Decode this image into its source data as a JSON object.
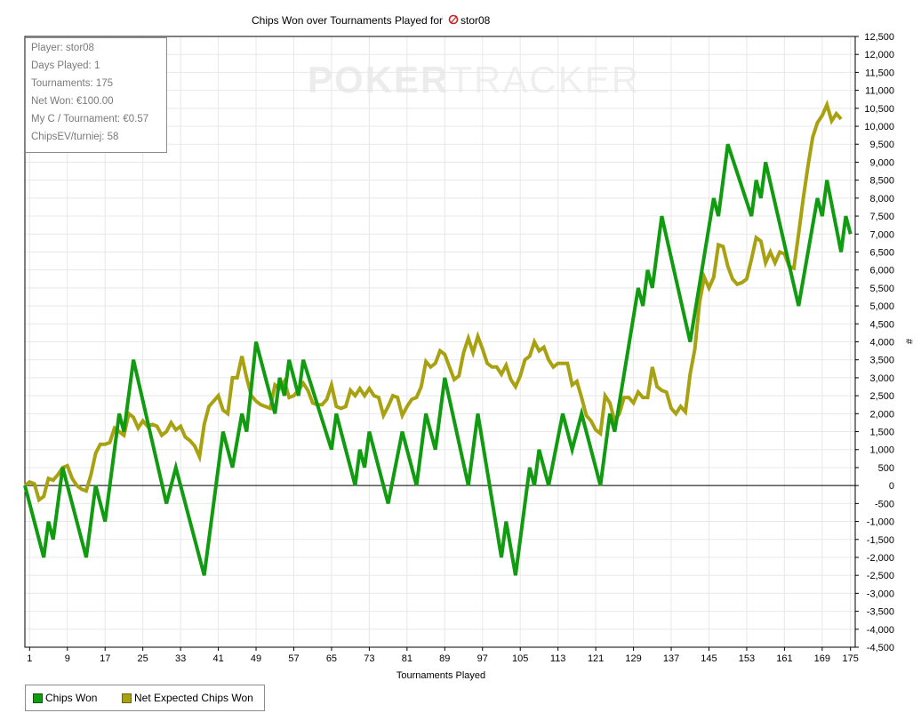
{
  "chart_data": {
    "type": "line",
    "title": "Chips Won over Tournaments Played for",
    "player_name": "stor08",
    "xlabel": "Tournaments Played",
    "ylabel": "#",
    "x_ticks": [
      1,
      9,
      17,
      25,
      33,
      41,
      49,
      57,
      65,
      73,
      81,
      89,
      97,
      105,
      113,
      121,
      129,
      137,
      145,
      153,
      161,
      169,
      175
    ],
    "xlim": [
      0,
      176
    ],
    "ylim": [
      -4500,
      12500
    ],
    "y_tick_step": 500,
    "grid": true,
    "legend_placement": "bottom-left",
    "series": [
      {
        "name": "Chips Won",
        "color": "#119b11",
        "points": [
          [
            0,
            0
          ],
          [
            4,
            -2000
          ],
          [
            5,
            -1000
          ],
          [
            6,
            -1500
          ],
          [
            8,
            500
          ],
          [
            13,
            -2000
          ],
          [
            15,
            0
          ],
          [
            17,
            -1000
          ],
          [
            20,
            2000
          ],
          [
            21,
            1500
          ],
          [
            23,
            3500
          ],
          [
            30,
            -500
          ],
          [
            32,
            500
          ],
          [
            38,
            -2500
          ],
          [
            42,
            1500
          ],
          [
            44,
            500
          ],
          [
            46,
            2000
          ],
          [
            47,
            1500
          ],
          [
            49,
            4000
          ],
          [
            53,
            2000
          ],
          [
            54,
            3000
          ],
          [
            55,
            2500
          ],
          [
            56,
            3500
          ],
          [
            58,
            2500
          ],
          [
            59,
            3500
          ],
          [
            65,
            1000
          ],
          [
            66,
            2000
          ],
          [
            70,
            0
          ],
          [
            71,
            1000
          ],
          [
            72,
            500
          ],
          [
            73,
            1500
          ],
          [
            77,
            -500
          ],
          [
            80,
            1500
          ],
          [
            83,
            0
          ],
          [
            85,
            2000
          ],
          [
            87,
            1000
          ],
          [
            89,
            3000
          ],
          [
            94,
            0
          ],
          [
            96,
            2000
          ],
          [
            101,
            -2000
          ],
          [
            102,
            -1000
          ],
          [
            104,
            -2500
          ],
          [
            107,
            500
          ],
          [
            108,
            0
          ],
          [
            109,
            1000
          ],
          [
            111,
            0
          ],
          [
            114,
            2000
          ],
          [
            116,
            1000
          ],
          [
            118,
            2000
          ],
          [
            122,
            0
          ],
          [
            124,
            2000
          ],
          [
            125,
            1500
          ],
          [
            130,
            5500
          ],
          [
            131,
            5000
          ],
          [
            132,
            6000
          ],
          [
            133,
            5500
          ],
          [
            135,
            7500
          ],
          [
            141,
            4000
          ],
          [
            146,
            8000
          ],
          [
            147,
            7500
          ],
          [
            149,
            9500
          ],
          [
            154,
            7500
          ],
          [
            155,
            8500
          ],
          [
            156,
            8000
          ],
          [
            157,
            9000
          ],
          [
            164,
            5000
          ],
          [
            168,
            8000
          ],
          [
            169,
            7500
          ],
          [
            170,
            8500
          ],
          [
            173,
            6500
          ],
          [
            174,
            7500
          ],
          [
            175,
            7000
          ]
        ]
      },
      {
        "name": "Net Expected Chips Won",
        "color": "#a8a212",
        "points": [
          [
            0,
            0
          ],
          [
            1,
            100
          ],
          [
            2,
            50
          ],
          [
            3,
            -400
          ],
          [
            4,
            -300
          ],
          [
            5,
            200
          ],
          [
            6,
            150
          ],
          [
            7,
            300
          ],
          [
            8,
            500
          ],
          [
            9,
            550
          ],
          [
            10,
            200
          ],
          [
            11,
            0
          ],
          [
            12,
            -100
          ],
          [
            13,
            -150
          ],
          [
            14,
            300
          ],
          [
            15,
            900
          ],
          [
            16,
            1150
          ],
          [
            17,
            1150
          ],
          [
            18,
            1200
          ],
          [
            19,
            1600
          ],
          [
            20,
            1500
          ],
          [
            21,
            1400
          ],
          [
            22,
            2000
          ],
          [
            23,
            1900
          ],
          [
            24,
            1600
          ],
          [
            25,
            1800
          ],
          [
            26,
            1650
          ],
          [
            27,
            1700
          ],
          [
            28,
            1650
          ],
          [
            29,
            1400
          ],
          [
            30,
            1500
          ],
          [
            31,
            1750
          ],
          [
            32,
            1550
          ],
          [
            33,
            1650
          ],
          [
            34,
            1350
          ],
          [
            35,
            1250
          ],
          [
            36,
            1100
          ],
          [
            37,
            800
          ],
          [
            38,
            1700
          ],
          [
            39,
            2200
          ],
          [
            40,
            2350
          ],
          [
            41,
            2500
          ],
          [
            42,
            2100
          ],
          [
            43,
            2000
          ],
          [
            44,
            3000
          ],
          [
            45,
            3000
          ],
          [
            46,
            3600
          ],
          [
            47,
            3000
          ],
          [
            48,
            2500
          ],
          [
            49,
            2350
          ],
          [
            50,
            2250
          ],
          [
            51,
            2200
          ],
          [
            52,
            2150
          ],
          [
            53,
            2800
          ],
          [
            54,
            2700
          ],
          [
            55,
            2900
          ],
          [
            56,
            2450
          ],
          [
            57,
            2500
          ],
          [
            58,
            2650
          ],
          [
            59,
            2850
          ],
          [
            60,
            2650
          ],
          [
            61,
            2300
          ],
          [
            62,
            2250
          ],
          [
            63,
            2250
          ],
          [
            64,
            2400
          ],
          [
            65,
            2800
          ],
          [
            66,
            2200
          ],
          [
            67,
            2150
          ],
          [
            68,
            2200
          ],
          [
            69,
            2650
          ],
          [
            70,
            2500
          ],
          [
            71,
            2700
          ],
          [
            72,
            2500
          ],
          [
            73,
            2700
          ],
          [
            74,
            2500
          ],
          [
            75,
            2450
          ],
          [
            76,
            1950
          ],
          [
            77,
            2200
          ],
          [
            78,
            2500
          ],
          [
            79,
            2450
          ],
          [
            80,
            1950
          ],
          [
            81,
            2200
          ],
          [
            82,
            2400
          ],
          [
            83,
            2450
          ],
          [
            84,
            2750
          ],
          [
            85,
            3450
          ],
          [
            86,
            3300
          ],
          [
            87,
            3400
          ],
          [
            88,
            3750
          ],
          [
            89,
            3650
          ],
          [
            90,
            3300
          ],
          [
            91,
            2950
          ],
          [
            92,
            3050
          ],
          [
            93,
            3700
          ],
          [
            94,
            4100
          ],
          [
            95,
            3700
          ],
          [
            96,
            4150
          ],
          [
            97,
            3800
          ],
          [
            98,
            3400
          ],
          [
            99,
            3300
          ],
          [
            100,
            3300
          ],
          [
            101,
            3100
          ],
          [
            102,
            3350
          ],
          [
            103,
            2950
          ],
          [
            104,
            2750
          ],
          [
            105,
            3050
          ],
          [
            106,
            3500
          ],
          [
            107,
            3600
          ],
          [
            108,
            4000
          ],
          [
            109,
            3750
          ],
          [
            110,
            3850
          ],
          [
            111,
            3500
          ],
          [
            112,
            3300
          ],
          [
            113,
            3400
          ],
          [
            114,
            3400
          ],
          [
            115,
            3400
          ],
          [
            116,
            2800
          ],
          [
            117,
            2900
          ],
          [
            118,
            2450
          ],
          [
            119,
            1950
          ],
          [
            120,
            1800
          ],
          [
            121,
            1550
          ],
          [
            122,
            1450
          ],
          [
            123,
            2500
          ],
          [
            124,
            2300
          ],
          [
            125,
            1800
          ],
          [
            126,
            2000
          ],
          [
            127,
            2450
          ],
          [
            128,
            2450
          ],
          [
            129,
            2300
          ],
          [
            130,
            2600
          ],
          [
            131,
            2450
          ],
          [
            132,
            2450
          ],
          [
            133,
            3300
          ],
          [
            134,
            2750
          ],
          [
            135,
            2650
          ],
          [
            136,
            2600
          ],
          [
            137,
            2150
          ],
          [
            138,
            2000
          ],
          [
            139,
            2200
          ],
          [
            140,
            2050
          ],
          [
            141,
            3100
          ],
          [
            142,
            3800
          ],
          [
            143,
            5100
          ],
          [
            144,
            5800
          ],
          [
            145,
            5500
          ],
          [
            146,
            5800
          ],
          [
            147,
            6700
          ],
          [
            148,
            6650
          ],
          [
            149,
            6100
          ],
          [
            150,
            5750
          ],
          [
            151,
            5600
          ],
          [
            152,
            5650
          ],
          [
            153,
            5750
          ],
          [
            154,
            6300
          ],
          [
            155,
            6900
          ],
          [
            156,
            6800
          ],
          [
            157,
            6200
          ],
          [
            158,
            6500
          ],
          [
            159,
            6200
          ],
          [
            160,
            6500
          ],
          [
            161,
            6450
          ],
          [
            162,
            6100
          ],
          [
            163,
            6050
          ],
          [
            164,
            7000
          ],
          [
            165,
            8000
          ],
          [
            166,
            8900
          ],
          [
            167,
            9700
          ],
          [
            168,
            10100
          ],
          [
            169,
            10300
          ],
          [
            170,
            10600
          ],
          [
            171,
            10150
          ],
          [
            172,
            10350
          ],
          [
            173,
            10200
          ]
        ]
      }
    ]
  },
  "stats": {
    "player": "Player: stor08",
    "days_played": "Days Played: 1",
    "tournaments": "Tournaments: 175",
    "net_won": "Net Won: €100.00",
    "my_c_per_tournament": "My C / Tournament: €0.57",
    "chipsev_per_tournament": "ChipsEV/turniej: 58"
  },
  "watermark": {
    "strong": "POKER",
    "light": "TRACKER"
  },
  "legend": {
    "items": [
      {
        "label": "Chips Won",
        "color": "#119b11"
      },
      {
        "label": "Net Expected Chips Won",
        "color": "#a8a212"
      }
    ]
  },
  "colors": {
    "zero_line": "#000000",
    "grid": "#e8e8e8",
    "axis": "#000000",
    "icon_red": "#cc2222"
  },
  "icons": {
    "player_icon": "poker-chip-icon"
  }
}
